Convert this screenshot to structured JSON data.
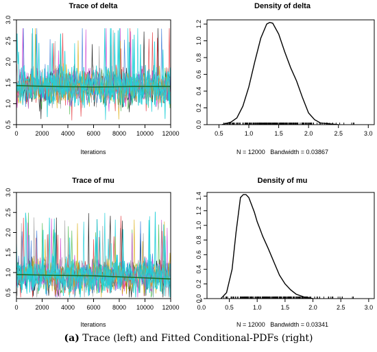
{
  "caption": {
    "label": "(a)",
    "text": "Trace (left) and Fitted Conditional-PDFs (right)"
  },
  "colors": {
    "chains": [
      "#000000",
      "#e3262b",
      "#3cb43c",
      "#2b6fd6",
      "#00c8d4",
      "#cf3bcf",
      "#d8a800",
      "#9a9a9a"
    ],
    "dominant": "#22d0d8",
    "smooth": "#1a6e2a"
  },
  "chart_data": [
    {
      "type": "line",
      "subtype": "trace",
      "title": "Trace of delta",
      "xlabel": "Iterations",
      "ylabel": "",
      "xlim": [
        0,
        12000
      ],
      "ylim": [
        0.5,
        3.0
      ],
      "xticks": [
        0,
        2000,
        4000,
        6000,
        8000,
        10000,
        12000
      ],
      "yticks": [
        0.5,
        1.0,
        1.5,
        2.0,
        2.5,
        3.0
      ],
      "n_chains": 8,
      "trace_summary": {
        "center": 1.4,
        "spread": 0.32,
        "min": 0.6,
        "max": 2.8
      },
      "smooth_line": {
        "x": [
          0,
          3000,
          6000,
          9000,
          12000
        ],
        "y": [
          1.43,
          1.41,
          1.4,
          1.41,
          1.41
        ]
      }
    },
    {
      "type": "line",
      "subtype": "density",
      "title": "Density of delta",
      "xlabel": "N = 12000   Bandwidth = 0.03867",
      "ylabel": "",
      "xlim": [
        0.3,
        3.1
      ],
      "ylim": [
        0,
        1.25
      ],
      "xticks": [
        0.5,
        1.0,
        1.5,
        2.0,
        2.5,
        3.0
      ],
      "yticks": [
        0.0,
        0.2,
        0.4,
        0.6,
        0.8,
        1.0,
        1.2
      ],
      "x": [
        0.55,
        0.7,
        0.8,
        0.9,
        1.0,
        1.1,
        1.2,
        1.3,
        1.35,
        1.4,
        1.5,
        1.6,
        1.7,
        1.8,
        1.9,
        2.0,
        2.1,
        2.2,
        2.35,
        2.5
      ],
      "y": [
        0.0,
        0.03,
        0.08,
        0.22,
        0.45,
        0.75,
        1.03,
        1.2,
        1.22,
        1.21,
        1.08,
        0.87,
        0.68,
        0.52,
        0.32,
        0.14,
        0.06,
        0.02,
        0.01,
        0.0
      ],
      "rug_range": [
        0.55,
        2.8
      ]
    },
    {
      "type": "line",
      "subtype": "trace",
      "title": "Trace of mu",
      "xlabel": "Iterations",
      "ylabel": "",
      "xlim": [
        0,
        12000
      ],
      "ylim": [
        0.35,
        3.0
      ],
      "xticks": [
        0,
        2000,
        4000,
        6000,
        8000,
        10000,
        12000
      ],
      "yticks": [
        0.5,
        1.0,
        1.5,
        2.0,
        2.5,
        3.0
      ],
      "n_chains": 8,
      "trace_summary": {
        "center": 0.92,
        "spread": 0.32,
        "min": 0.38,
        "max": 2.9
      },
      "smooth_line": {
        "x": [
          0,
          3000,
          6000,
          9000,
          12000
        ],
        "y": [
          0.95,
          0.93,
          0.92,
          0.88,
          0.84
        ]
      }
    },
    {
      "type": "line",
      "subtype": "density",
      "title": "Density of mu",
      "xlabel": "N = 12000   Bandwidth = 0.03341",
      "ylabel": "",
      "xlim": [
        0.1,
        3.1
      ],
      "ylim": [
        0,
        1.45
      ],
      "xticks": [
        0.0,
        0.5,
        1.0,
        1.5,
        2.0,
        2.5,
        3.0
      ],
      "yticks": [
        0.0,
        0.2,
        0.4,
        0.6,
        0.8,
        1.0,
        1.2,
        1.4
      ],
      "x": [
        0.35,
        0.45,
        0.55,
        0.62,
        0.7,
        0.75,
        0.8,
        0.85,
        0.9,
        0.95,
        1.0,
        1.05,
        1.1,
        1.2,
        1.3,
        1.4,
        1.5,
        1.6,
        1.7,
        1.85,
        2.0
      ],
      "y": [
        0.0,
        0.08,
        0.4,
        0.9,
        1.38,
        1.42,
        1.42,
        1.38,
        1.28,
        1.18,
        1.05,
        0.95,
        0.85,
        0.68,
        0.5,
        0.32,
        0.2,
        0.12,
        0.06,
        0.02,
        0.0
      ],
      "rug_range": [
        0.35,
        2.9
      ]
    }
  ]
}
